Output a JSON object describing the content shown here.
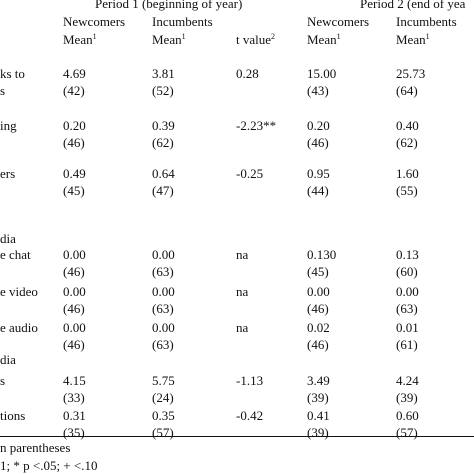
{
  "header": {
    "period1": "Period 1 (beginning of year)",
    "period2": "Period 2 (end of yea",
    "newcomers": "Newcomers",
    "incumbents": "Incumbents",
    "mean": "Mean",
    "sup1": "1",
    "t_value": "t value",
    "sup2": "2"
  },
  "rows": [
    {
      "label1": "ks to",
      "label2": "s",
      "n1_mean": "4.69",
      "n1_n": "(42)",
      "i1_mean": "3.81",
      "i1_n": "(52)",
      "t": "0.28",
      "n2_mean": "15.00",
      "n2_n": "(43)",
      "i2_mean": "25.73",
      "i2_n": "(64)"
    },
    {
      "label1": "ing",
      "label2": "",
      "n1_mean": "0.20",
      "n1_n": "(46)",
      "i1_mean": "0.39",
      "i1_n": "(62)",
      "t": "-2.23**",
      "n2_mean": "0.20",
      "n2_n": "(46)",
      "i2_mean": "0.40",
      "i2_n": "(62)"
    },
    {
      "label1": "ers",
      "label2": "",
      "n1_mean": "0.49",
      "n1_n": "(45)",
      "i1_mean": "0.64",
      "i1_n": "(47)",
      "t": "-0.25",
      "n2_mean": "0.95",
      "n2_n": "(44)",
      "i2_mean": "1.60",
      "i2_n": "(55)"
    },
    {
      "label1": "e chat",
      "label2": "",
      "n1_mean": "0.00",
      "n1_n": "(46)",
      "i1_mean": "0.00",
      "i1_n": "(63)",
      "t": "na",
      "n2_mean": "0.130",
      "n2_n": "(45)",
      "i2_mean": "0.13",
      "i2_n": "(60)"
    },
    {
      "label1": "e video",
      "label2": "",
      "n1_mean": "0.00",
      "n1_n": "(46)",
      "i1_mean": "0.00",
      "i1_n": "(63)",
      "t": "na",
      "n2_mean": "0.00",
      "n2_n": "(46)",
      "i2_mean": "0.00",
      "i2_n": "(63)"
    },
    {
      "label1": "e audio",
      "label2": "",
      "n1_mean": "0.00",
      "n1_n": "(46)",
      "i1_mean": "0.00",
      "i1_n": "(63)",
      "t": "na",
      "n2_mean": "0.02",
      "n2_n": "(46)",
      "i2_mean": "0.01",
      "i2_n": "(61)"
    },
    {
      "label1": "s",
      "label2": "",
      "n1_mean": "4.15",
      "n1_n": "(33)",
      "i1_mean": "5.75",
      "i1_n": "(24)",
      "t": "-1.13",
      "n2_mean": "3.49",
      "n2_n": "(39)",
      "i2_mean": "4.24",
      "i2_n": "(39)"
    },
    {
      "label1": "tions",
      "label2": "",
      "n1_mean": "0.31",
      "n1_n": "(35)",
      "i1_mean": "0.35",
      "i1_n": "(57)",
      "t": "-0.42",
      "n2_mean": "0.41",
      "n2_n": "(39)",
      "i2_mean": "0.60",
      "i2_n": "(57)"
    }
  ],
  "section_labels": {
    "media1": "dia",
    "media2": "dia"
  },
  "footnotes": {
    "line1": "n parentheses",
    "line2": "1; * p <.05; + <.10"
  }
}
